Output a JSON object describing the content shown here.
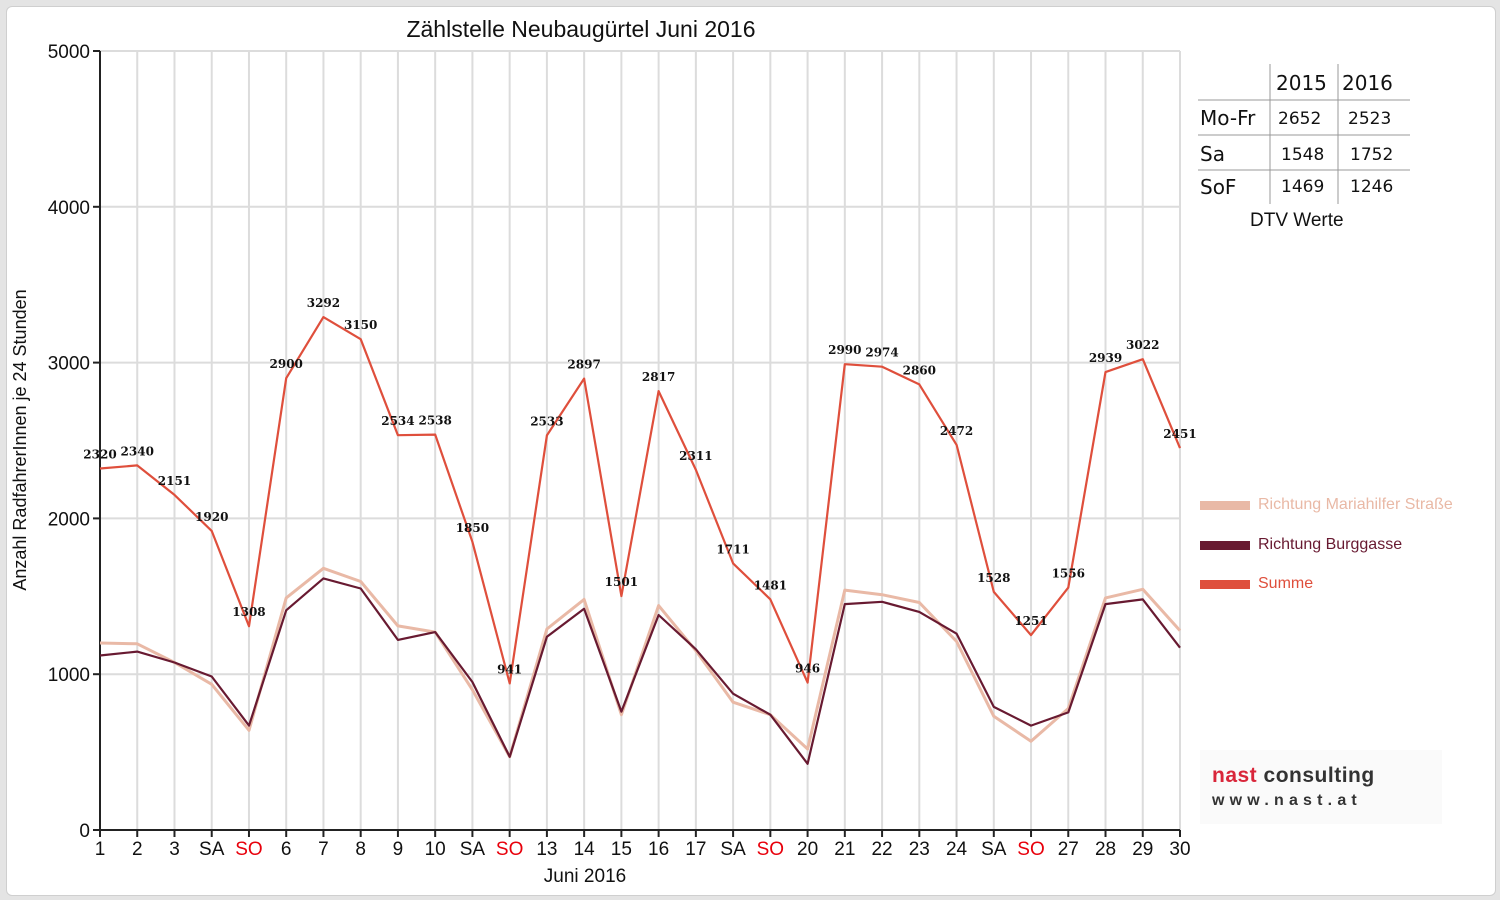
{
  "chart_data": {
    "type": "line",
    "title": "Zählstelle Neubaugürtel Juni 2016",
    "xlabel": "Juni 2016",
    "ylabel": "Anzahl RadfahrerInnen je 24 Stunden",
    "ylim": [
      0,
      5000
    ],
    "yticks": [
      "0",
      "1000",
      "2000",
      "3000",
      "4000",
      "5000"
    ],
    "grid": true,
    "legend_position": "right",
    "categories": [
      "1",
      "2",
      "3",
      "SA",
      "SO",
      "6",
      "7",
      "8",
      "9",
      "10",
      "SA",
      "SO",
      "13",
      "14",
      "15",
      "16",
      "17",
      "SA",
      "SO",
      "20",
      "21",
      "22",
      "23",
      "24",
      "SA",
      "SO",
      "27",
      "28",
      "29",
      "30"
    ],
    "weekend_label_color": "#e8000b",
    "series": [
      {
        "name": "Richtung Mariahilfer Straße",
        "color": "#e9b9a6",
        "values": [
          1200,
          1195,
          1075,
          935,
          640,
          1490,
          1680,
          1595,
          1310,
          1270,
          900,
          470,
          1290,
          1480,
          740,
          1440,
          1150,
          820,
          740,
          520,
          1540,
          1510,
          1460,
          1210,
          730,
          570,
          780,
          1490,
          1545,
          1280
        ]
      },
      {
        "name": "Richtung Burggasse",
        "color": "#681a31",
        "values": [
          1120,
          1145,
          1075,
          985,
          670,
          1410,
          1615,
          1550,
          1220,
          1270,
          950,
          470,
          1240,
          1420,
          760,
          1380,
          1160,
          875,
          740,
          425,
          1450,
          1465,
          1400,
          1260,
          790,
          670,
          755,
          1450,
          1480,
          1170
        ]
      },
      {
        "name": "Summe",
        "color": "#df4f3c",
        "values": [
          2320,
          2340,
          2151,
          1920,
          1308,
          2900,
          3292,
          3150,
          2534,
          2538,
          1850,
          941,
          2533,
          2897,
          1501,
          2817,
          2311,
          1711,
          1481,
          946,
          2990,
          2974,
          2860,
          2472,
          1528,
          1251,
          1556,
          2939,
          3022,
          2451
        ]
      }
    ],
    "data_labels": [
      "2320",
      "2340",
      "2151",
      "1920",
      "1308",
      "2900",
      "3292",
      "3150",
      "2534",
      "2538",
      "1850",
      "941",
      "2533",
      "2897",
      "1501",
      "2817",
      "2311",
      "1711",
      "1481",
      "946",
      "2990",
      "2974",
      "2860",
      "2472",
      "1528",
      "1251",
      "1556",
      "2939",
      "3022",
      "2451"
    ]
  },
  "dtv_table": {
    "caption": "DTV Werte",
    "headers": [
      "",
      "2015",
      "2016"
    ],
    "rows": [
      {
        "label": "Mo-Fr",
        "v2015": "2652",
        "v2016": "2523"
      },
      {
        "label": "Sa",
        "v2015": "1548",
        "v2016": "1752"
      },
      {
        "label": "SoF",
        "v2015": "1469",
        "v2016": "1246"
      }
    ]
  },
  "logo": {
    "line1_accent": "nast",
    "line1_rest": " consulting",
    "line2": "www.nast.at"
  }
}
